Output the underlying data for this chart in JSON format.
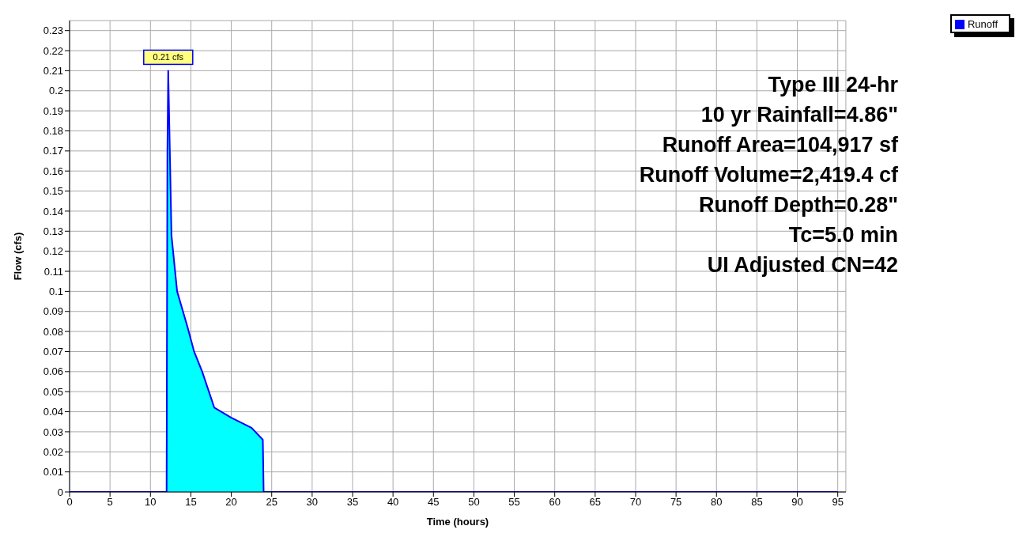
{
  "chart_data": {
    "type": "area",
    "xlabel": "Time  (hours)",
    "ylabel": "Flow  (cfs)",
    "x": [
      0,
      12,
      12.1,
      12.2,
      12.4,
      12.6,
      13.3,
      14.6,
      15.4,
      16.4,
      17.9,
      20,
      22.5,
      23.9,
      24,
      95
    ],
    "series": [
      {
        "name": "Runoff",
        "color": "#00ffff",
        "values": [
          0,
          0,
          0.17,
          0.21,
          0.17,
          0.128,
          0.1,
          0.082,
          0.07,
          0.06,
          0.042,
          0.037,
          0.032,
          0.026,
          0,
          0
        ]
      }
    ],
    "xlim": [
      0,
      96
    ],
    "xticks": [
      0,
      5,
      10,
      15,
      20,
      25,
      30,
      35,
      40,
      45,
      50,
      55,
      60,
      65,
      70,
      75,
      80,
      85,
      90,
      95
    ],
    "ylim": [
      0,
      0.235
    ],
    "yticks": [
      0,
      0.01,
      0.02,
      0.03,
      0.04,
      0.05,
      0.06,
      0.07,
      0.08,
      0.09,
      0.1,
      0.11,
      0.12,
      0.13,
      0.14,
      0.15,
      0.16,
      0.17,
      0.18,
      0.19,
      0.2,
      0.21,
      0.22,
      0.23
    ],
    "grid": true,
    "legend": "top right",
    "annotations": [
      {
        "text": "0.21 cfs",
        "x": 12.2,
        "y": 0.21
      },
      "Type III 24-hr",
      "10 yr Rainfall=4.86\"",
      "Runoff Area=104,917 sf",
      "Runoff Volume=2,419.4 cf",
      "Runoff Depth=0.28\"",
      "Tc=5.0 min",
      "UI Adjusted CN=42"
    ]
  }
}
